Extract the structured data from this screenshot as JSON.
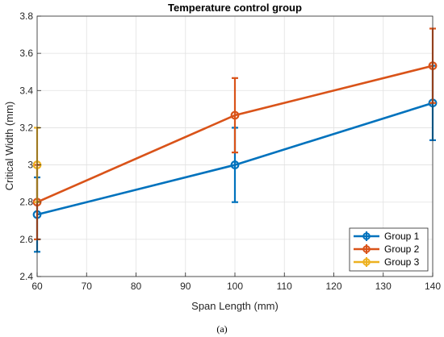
{
  "chart_data": {
    "type": "line",
    "title": "Temperature control group",
    "xlabel": "Span Length (mm)",
    "ylabel": "Critical Width (mm)",
    "xlim": [
      60,
      140
    ],
    "ylim": [
      2.4,
      3.8
    ],
    "xticks": [
      60,
      70,
      80,
      90,
      100,
      110,
      120,
      130,
      140
    ],
    "yticks": [
      2.4,
      2.6,
      2.8,
      3.0,
      3.2,
      3.4,
      3.6,
      3.8
    ],
    "xtick_labels": [
      "60",
      "70",
      "80",
      "90",
      "100",
      "110",
      "120",
      "130",
      "140"
    ],
    "ytick_labels": [
      "2.4",
      "2.6",
      "2.8",
      "3",
      "3.2",
      "3.4",
      "3.6",
      "3.8"
    ],
    "grid": true,
    "legend_position": "bottom-right",
    "series": [
      {
        "name": "Group 1",
        "color": "#0072BD",
        "x": [
          60,
          100,
          140
        ],
        "y": [
          2.733,
          3.0,
          3.333
        ],
        "err": [
          0.2,
          0.2,
          0.2
        ]
      },
      {
        "name": "Group 2",
        "color": "#D95319",
        "x": [
          60,
          100,
          140
        ],
        "y": [
          2.8,
          3.267,
          3.533
        ],
        "err": [
          0.2,
          0.2,
          0.2
        ]
      },
      {
        "name": "Group 3",
        "color": "#EDB120",
        "x": [
          60
        ],
        "y": [
          3.0
        ],
        "err": [
          0.2
        ]
      }
    ],
    "caption": "(a)"
  }
}
